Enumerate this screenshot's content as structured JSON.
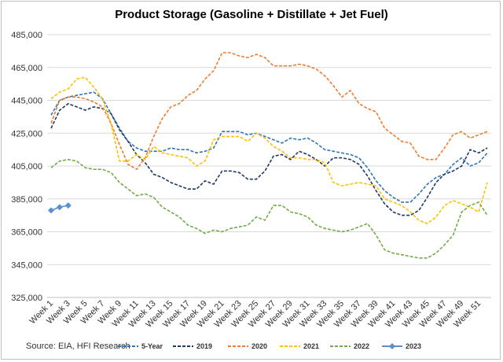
{
  "chart_data": {
    "type": "line",
    "title": "Product Storage (Gasoline + Distillate + Jet Fuel)",
    "source": "Source: EIA, HFI Research",
    "ylim": [
      325000,
      485000
    ],
    "yticks": [
      325000,
      345000,
      365000,
      385000,
      405000,
      425000,
      445000,
      465000,
      485000
    ],
    "ytick_labels": [
      "325,000",
      "345,000",
      "365,000",
      "385,000",
      "405,000",
      "425,000",
      "445,000",
      "465,000",
      "485,000"
    ],
    "xtick_labels": [
      "Week 1",
      "Week 3",
      "Week 5",
      "Week 7",
      "Week 9",
      "Week 11",
      "Week 13",
      "Week 15",
      "Week 17",
      "Week 19",
      "Week 21",
      "Week 23",
      "Week 25",
      "Week 27",
      "Week 29",
      "Week 31",
      "Week 33",
      "Week 35",
      "Week 37",
      "Week 39",
      "Week 41",
      "Week 43",
      "Week 45",
      "Week 47",
      "Week 49",
      "Week 51"
    ],
    "grid": "horizontal",
    "legend_position": "bottom",
    "series": [
      {
        "name": "5-Year",
        "color": "#2e75b6",
        "dash": "dashed",
        "values": [
          436000,
          445000,
          447000,
          448000,
          449000,
          450000,
          446000,
          437000,
          428000,
          420000,
          416000,
          414000,
          414000,
          414000,
          416000,
          415000,
          415000,
          413000,
          414000,
          416000,
          426000,
          426000,
          426000,
          424000,
          425000,
          423000,
          421000,
          419000,
          422000,
          421000,
          422000,
          419000,
          415000,
          414000,
          413000,
          412000,
          410000,
          404000,
          396000,
          390000,
          386000,
          383000,
          383000,
          388000,
          394000,
          398000,
          400000,
          406000,
          410000,
          405000,
          407000,
          413000
        ]
      },
      {
        "name": "2019",
        "color": "#1f3864",
        "dash": "dashed",
        "values": [
          428000,
          439000,
          443000,
          441000,
          439000,
          441000,
          440000,
          437000,
          427000,
          420000,
          412000,
          407000,
          400000,
          398000,
          395000,
          393000,
          391000,
          391000,
          396000,
          394000,
          402000,
          402000,
          401000,
          397000,
          397000,
          402000,
          411000,
          412000,
          409000,
          414000,
          412000,
          409000,
          405000,
          410000,
          410000,
          409000,
          406000,
          399000,
          390000,
          382000,
          377000,
          375000,
          375000,
          378000,
          386000,
          395000,
          400000,
          402000,
          405000,
          415000,
          413000,
          416000
        ]
      },
      {
        "name": "2020",
        "color": "#ed7d31",
        "dash": "dashed",
        "values": [
          431000,
          445000,
          447000,
          447000,
          446000,
          444000,
          441000,
          431000,
          418000,
          406000,
          403000,
          410000,
          423000,
          434000,
          441000,
          443000,
          448000,
          451000,
          458000,
          463000,
          474000,
          474000,
          472000,
          471000,
          473000,
          471000,
          466000,
          466000,
          466000,
          467000,
          466000,
          464000,
          460000,
          454000,
          447000,
          451000,
          443000,
          440000,
          438000,
          428000,
          424000,
          420000,
          419000,
          411000,
          409000,
          409000,
          416000,
          424000,
          426000,
          422000,
          424000,
          426000
        ]
      },
      {
        "name": "2021",
        "color": "#ffc000",
        "dash": "dashed",
        "values": [
          446000,
          450000,
          452000,
          458000,
          459000,
          453000,
          446000,
          431000,
          408000,
          408000,
          412000,
          409000,
          417000,
          413000,
          412000,
          411000,
          410000,
          405000,
          408000,
          421000,
          423000,
          423000,
          423000,
          420000,
          425000,
          422000,
          417000,
          414000,
          410000,
          410000,
          409000,
          409000,
          407000,
          395000,
          393000,
          394000,
          395000,
          394000,
          393000,
          385000,
          383000,
          381000,
          377000,
          372000,
          370000,
          374000,
          381000,
          384000,
          382000,
          380000,
          377000,
          395000
        ]
      },
      {
        "name": "2022",
        "color": "#70ad47",
        "dash": "dashed",
        "values": [
          404000,
          408000,
          409000,
          408000,
          404000,
          403000,
          403000,
          401000,
          395000,
          391000,
          387000,
          388000,
          386000,
          380000,
          377000,
          374000,
          369000,
          367000,
          364000,
          366000,
          365000,
          367000,
          368000,
          369000,
          374000,
          372000,
          381000,
          381000,
          377000,
          376000,
          374000,
          369000,
          367000,
          366000,
          365000,
          366000,
          368000,
          370000,
          363000,
          354000,
          352000,
          351000,
          350000,
          349000,
          349000,
          352000,
          357000,
          363000,
          377000,
          381000,
          383000,
          375000
        ]
      },
      {
        "name": "2023",
        "color": "#5b8fd0",
        "dash": "solid",
        "marker": "diamond",
        "values": [
          378000,
          380000,
          381000
        ]
      }
    ]
  }
}
